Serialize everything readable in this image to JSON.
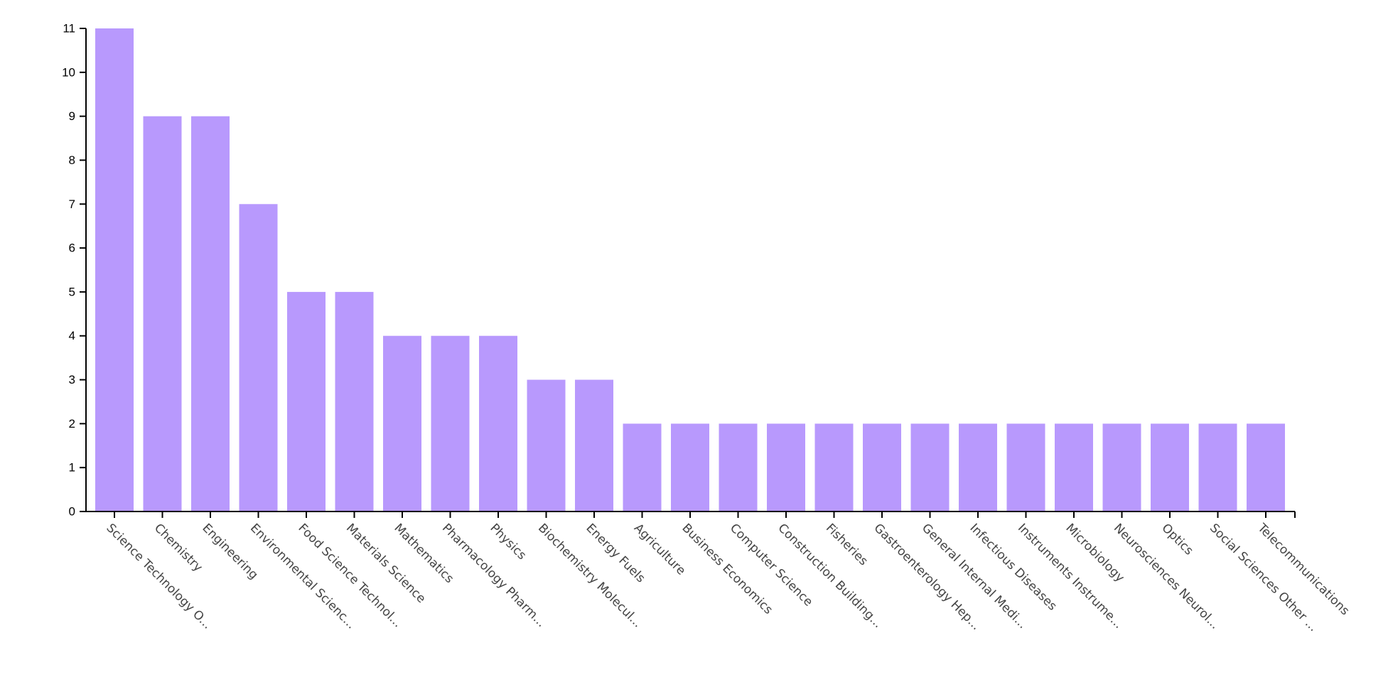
{
  "chart_data": {
    "type": "bar",
    "title": "",
    "xlabel": "",
    "ylabel": "",
    "ylim": [
      0,
      11
    ],
    "y_ticks": [
      0,
      1,
      2,
      3,
      4,
      5,
      6,
      7,
      8,
      9,
      10,
      11
    ],
    "grid": false,
    "bar_color": "#b899fd",
    "categories": [
      "Science Technology O...",
      "Chemistry",
      "Engineering",
      "Environmental Scienc...",
      "Food Science Technol...",
      "Materials Science",
      "Mathematics",
      "Pharmacology Pharm...",
      "Physics",
      "Biochemistry Molecul...",
      "Energy Fuels",
      "Agriculture",
      "Business Economics",
      "Computer Science",
      "Construction Building...",
      "Fisheries",
      "Gastroenterology Hep...",
      "General Internal Medi...",
      "Infectious Diseases",
      "Instruments Instrume...",
      "Microbiology",
      "Neurosciences Neurol...",
      "Optics",
      "Social Sciences Other ...",
      "Telecommunications"
    ],
    "values": [
      11,
      9,
      9,
      7,
      5,
      5,
      4,
      4,
      4,
      3,
      3,
      2,
      2,
      2,
      2,
      2,
      2,
      2,
      2,
      2,
      2,
      2,
      2,
      2,
      2
    ]
  }
}
